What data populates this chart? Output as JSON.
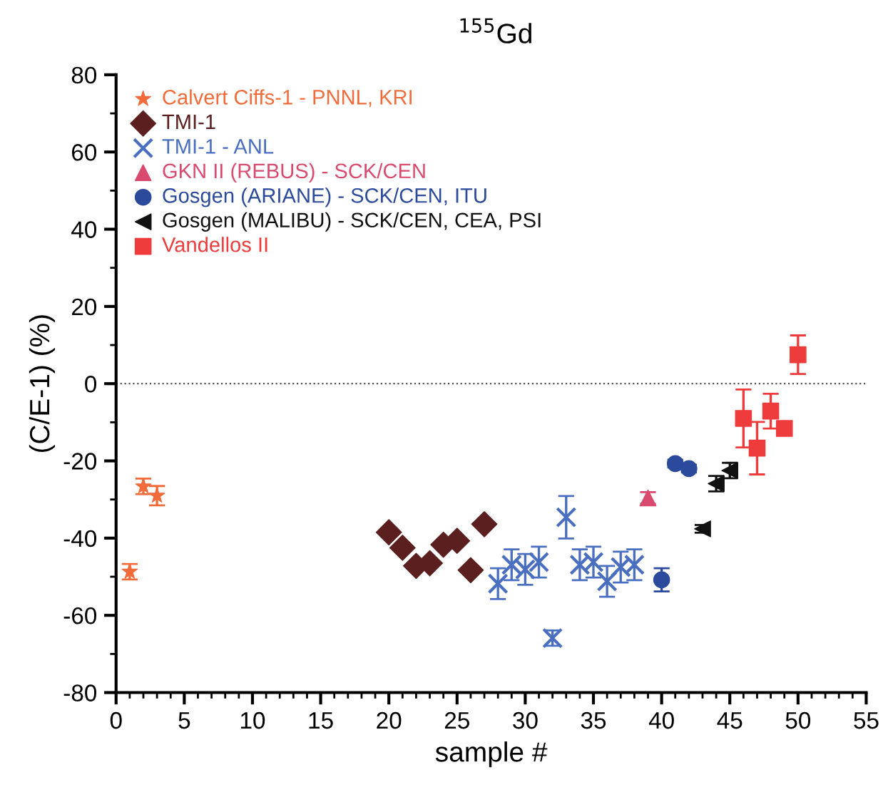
{
  "chart_data": {
    "type": "scatter",
    "title": "$^{155}$Gd",
    "xlabel": "sample #",
    "ylabel": "(C/E-1) (%)",
    "xlim": [
      0,
      55
    ],
    "xticks": [
      0,
      5,
      10,
      15,
      20,
      25,
      30,
      35,
      40,
      45,
      50,
      55
    ],
    "ylim": [
      -80,
      80
    ],
    "yticks": [
      -80,
      -60,
      -40,
      -20,
      0,
      20,
      40,
      60,
      80
    ],
    "grid": false,
    "legend": "top left",
    "ref_lines": [
      {
        "axis": "y",
        "value": 0,
        "color": "#555555",
        "line_style": "dotted"
      }
    ],
    "series": [
      {
        "name": "Calvert Ciffs-1 - PNNL, KRI",
        "color": "#f26b3a",
        "marker": "star",
        "x": [
          1,
          2,
          3
        ],
        "values": [
          -48.7,
          -26.6,
          -29.0
        ],
        "errors": [
          2,
          2,
          2.5
        ]
      },
      {
        "name": "TMI-1",
        "color": "#5c1f1f",
        "marker": "diamond",
        "x": [
          20,
          21,
          22,
          23,
          24,
          25,
          26,
          27
        ],
        "values": [
          -38.5,
          -42.5,
          -47.2,
          -46.5,
          -41.7,
          -40.7,
          -48.3,
          -36.4
        ]
      },
      {
        "name": "TMI-1 - ANL",
        "color": "#4a6fc0",
        "marker": "cross",
        "x": [
          28,
          29,
          30,
          31,
          32,
          33,
          34,
          35,
          36,
          37,
          38
        ],
        "values": [
          -51.8,
          -46.9,
          -48.1,
          -46.2,
          -65.9,
          -34.6,
          -46.9,
          -46.2,
          -51.2,
          -47.5,
          -46.9
        ],
        "errors": [
          4,
          4,
          4,
          4,
          2,
          5.5,
          4,
          4,
          4,
          4,
          4
        ]
      },
      {
        "name": "GKN II (REBUS) - SCK/CEN",
        "color": "#d94a6e",
        "marker": "triangle",
        "x": [
          39
        ],
        "values": [
          -29.6
        ],
        "errors": [
          1.5
        ]
      },
      {
        "name": "Gosgen (ARIANE) - SCK/CEN, ITU",
        "color": "#2c4a9c",
        "marker": "circle",
        "x": [
          40,
          41,
          42
        ],
        "values": [
          -50.8,
          -20.7,
          -22.0
        ],
        "errors": [
          3,
          1,
          1
        ]
      },
      {
        "name": "Gosgen (MALIBU) - SCK/CEN, CEA, PSI",
        "color": "#111111",
        "marker": "triangle-left",
        "x": [
          43,
          44,
          45
        ],
        "values": [
          -37.6,
          -25.9,
          -22.5
        ],
        "errors": [
          1,
          2,
          2
        ]
      },
      {
        "name": "Vandellos II",
        "color": "#ee3b3b",
        "marker": "square",
        "x": [
          46,
          47,
          48,
          49,
          50
        ],
        "values": [
          -9.0,
          -16.7,
          -7.1,
          -11.6,
          7.5
        ],
        "errors": [
          7.5,
          6.8,
          4.5,
          1,
          5
        ]
      }
    ]
  }
}
